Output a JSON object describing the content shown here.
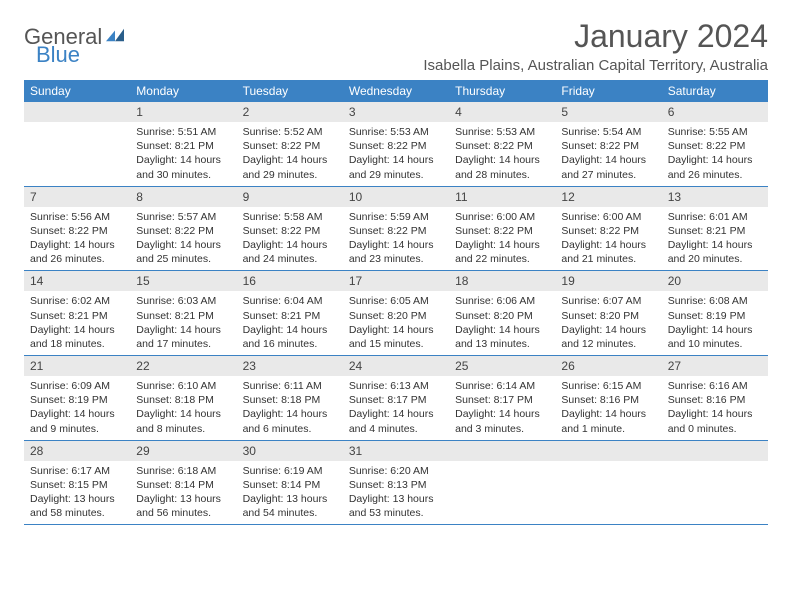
{
  "logo": {
    "part1": "General",
    "part2": "Blue"
  },
  "title": "January 2024",
  "location": "Isabella Plains, Australian Capital Territory, Australia",
  "colors": {
    "brand": "#3b82c4",
    "header_bg": "#3b82c4",
    "daynum_bg": "#e9e9e9",
    "text": "#333333"
  },
  "weekdays": [
    "Sunday",
    "Monday",
    "Tuesday",
    "Wednesday",
    "Thursday",
    "Friday",
    "Saturday"
  ],
  "first_weekday_index": 1,
  "days": [
    {
      "n": 1,
      "sunrise": "5:51 AM",
      "sunset": "8:21 PM",
      "daylight": "14 hours and 30 minutes."
    },
    {
      "n": 2,
      "sunrise": "5:52 AM",
      "sunset": "8:22 PM",
      "daylight": "14 hours and 29 minutes."
    },
    {
      "n": 3,
      "sunrise": "5:53 AM",
      "sunset": "8:22 PM",
      "daylight": "14 hours and 29 minutes."
    },
    {
      "n": 4,
      "sunrise": "5:53 AM",
      "sunset": "8:22 PM",
      "daylight": "14 hours and 28 minutes."
    },
    {
      "n": 5,
      "sunrise": "5:54 AM",
      "sunset": "8:22 PM",
      "daylight": "14 hours and 27 minutes."
    },
    {
      "n": 6,
      "sunrise": "5:55 AM",
      "sunset": "8:22 PM",
      "daylight": "14 hours and 26 minutes."
    },
    {
      "n": 7,
      "sunrise": "5:56 AM",
      "sunset": "8:22 PM",
      "daylight": "14 hours and 26 minutes."
    },
    {
      "n": 8,
      "sunrise": "5:57 AM",
      "sunset": "8:22 PM",
      "daylight": "14 hours and 25 minutes."
    },
    {
      "n": 9,
      "sunrise": "5:58 AM",
      "sunset": "8:22 PM",
      "daylight": "14 hours and 24 minutes."
    },
    {
      "n": 10,
      "sunrise": "5:59 AM",
      "sunset": "8:22 PM",
      "daylight": "14 hours and 23 minutes."
    },
    {
      "n": 11,
      "sunrise": "6:00 AM",
      "sunset": "8:22 PM",
      "daylight": "14 hours and 22 minutes."
    },
    {
      "n": 12,
      "sunrise": "6:00 AM",
      "sunset": "8:22 PM",
      "daylight": "14 hours and 21 minutes."
    },
    {
      "n": 13,
      "sunrise": "6:01 AM",
      "sunset": "8:21 PM",
      "daylight": "14 hours and 20 minutes."
    },
    {
      "n": 14,
      "sunrise": "6:02 AM",
      "sunset": "8:21 PM",
      "daylight": "14 hours and 18 minutes."
    },
    {
      "n": 15,
      "sunrise": "6:03 AM",
      "sunset": "8:21 PM",
      "daylight": "14 hours and 17 minutes."
    },
    {
      "n": 16,
      "sunrise": "6:04 AM",
      "sunset": "8:21 PM",
      "daylight": "14 hours and 16 minutes."
    },
    {
      "n": 17,
      "sunrise": "6:05 AM",
      "sunset": "8:20 PM",
      "daylight": "14 hours and 15 minutes."
    },
    {
      "n": 18,
      "sunrise": "6:06 AM",
      "sunset": "8:20 PM",
      "daylight": "14 hours and 13 minutes."
    },
    {
      "n": 19,
      "sunrise": "6:07 AM",
      "sunset": "8:20 PM",
      "daylight": "14 hours and 12 minutes."
    },
    {
      "n": 20,
      "sunrise": "6:08 AM",
      "sunset": "8:19 PM",
      "daylight": "14 hours and 10 minutes."
    },
    {
      "n": 21,
      "sunrise": "6:09 AM",
      "sunset": "8:19 PM",
      "daylight": "14 hours and 9 minutes."
    },
    {
      "n": 22,
      "sunrise": "6:10 AM",
      "sunset": "8:18 PM",
      "daylight": "14 hours and 8 minutes."
    },
    {
      "n": 23,
      "sunrise": "6:11 AM",
      "sunset": "8:18 PM",
      "daylight": "14 hours and 6 minutes."
    },
    {
      "n": 24,
      "sunrise": "6:13 AM",
      "sunset": "8:17 PM",
      "daylight": "14 hours and 4 minutes."
    },
    {
      "n": 25,
      "sunrise": "6:14 AM",
      "sunset": "8:17 PM",
      "daylight": "14 hours and 3 minutes."
    },
    {
      "n": 26,
      "sunrise": "6:15 AM",
      "sunset": "8:16 PM",
      "daylight": "14 hours and 1 minute."
    },
    {
      "n": 27,
      "sunrise": "6:16 AM",
      "sunset": "8:16 PM",
      "daylight": "14 hours and 0 minutes."
    },
    {
      "n": 28,
      "sunrise": "6:17 AM",
      "sunset": "8:15 PM",
      "daylight": "13 hours and 58 minutes."
    },
    {
      "n": 29,
      "sunrise": "6:18 AM",
      "sunset": "8:14 PM",
      "daylight": "13 hours and 56 minutes."
    },
    {
      "n": 30,
      "sunrise": "6:19 AM",
      "sunset": "8:14 PM",
      "daylight": "13 hours and 54 minutes."
    },
    {
      "n": 31,
      "sunrise": "6:20 AM",
      "sunset": "8:13 PM",
      "daylight": "13 hours and 53 minutes."
    }
  ],
  "labels": {
    "sunrise": "Sunrise:",
    "sunset": "Sunset:",
    "daylight": "Daylight:"
  }
}
